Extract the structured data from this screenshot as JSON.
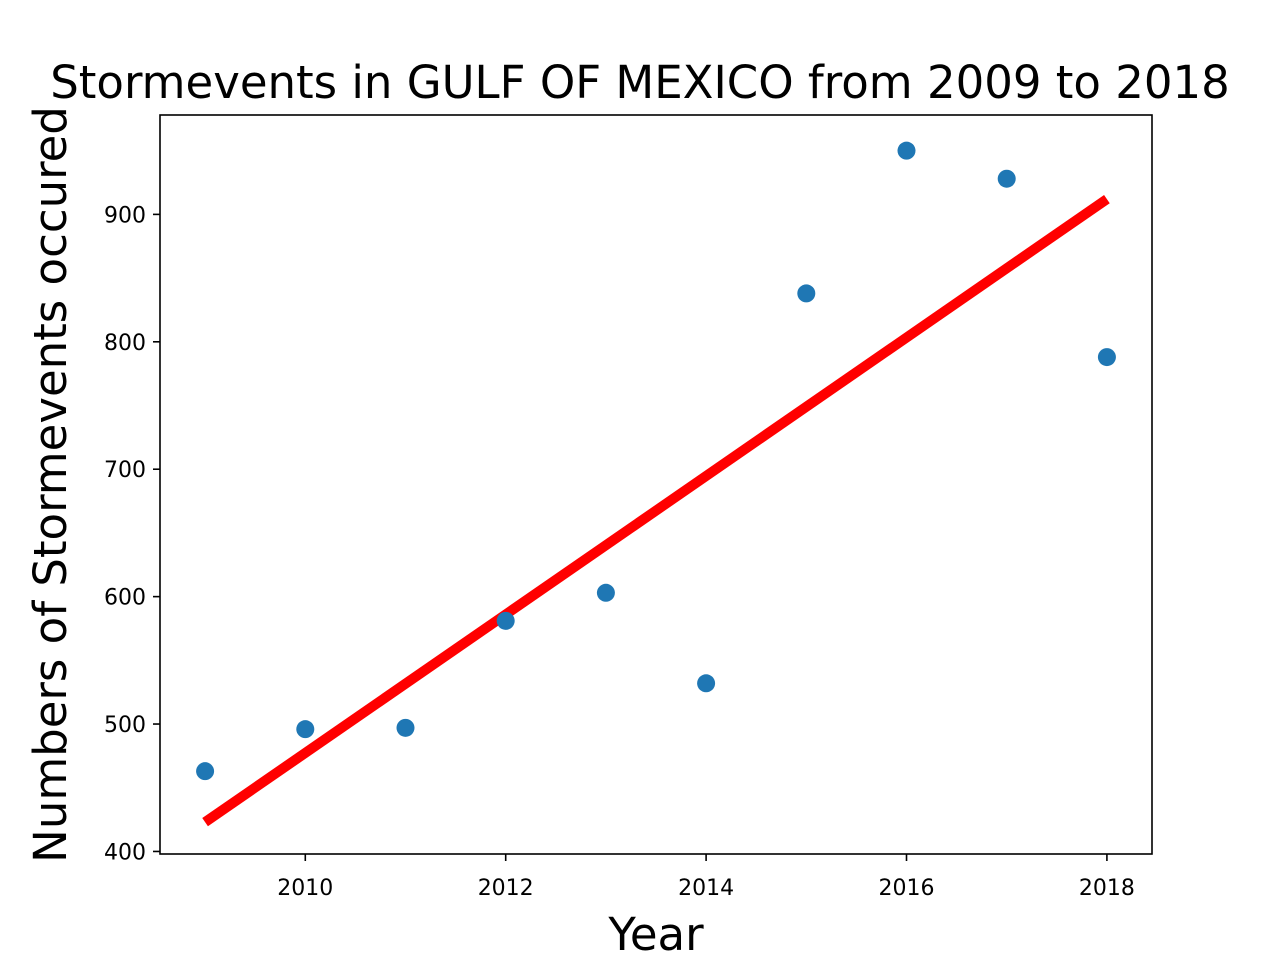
{
  "chart_data": {
    "type": "scatter",
    "title": "Stormevents in GULF OF MEXICO from 2009 to 2018",
    "xlabel": "Year",
    "ylabel": "Numbers of Stormevents occured",
    "xlim": [
      2008.55,
      2018.45
    ],
    "ylim": [
      398,
      978
    ],
    "xticks": [
      2010,
      2012,
      2014,
      2016,
      2018
    ],
    "yticks": [
      400,
      500,
      600,
      700,
      800,
      900
    ],
    "grid": false,
    "points": {
      "x": [
        2009,
        2010,
        2011,
        2012,
        2013,
        2014,
        2015,
        2016,
        2017,
        2018
      ],
      "y": [
        463,
        496,
        497,
        581,
        603,
        532,
        838,
        950,
        928,
        788
      ],
      "color": "#1f77b4"
    },
    "trendline": {
      "x": [
        2009,
        2018
      ],
      "y": [
        423,
        912
      ],
      "color": "#ff0000"
    }
  }
}
